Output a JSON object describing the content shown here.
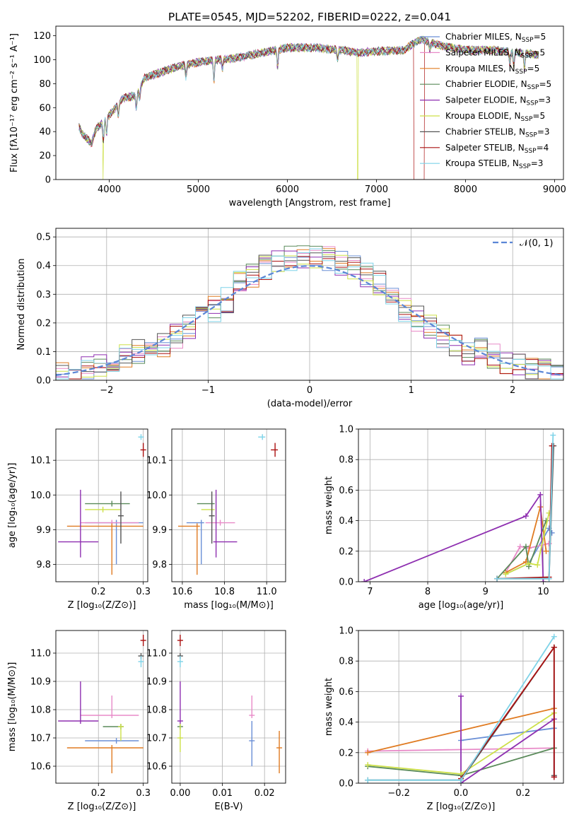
{
  "title": "PLATE=0545, MJD=52202, FIBERID=0222, z=0.041",
  "colors": {
    "Chabrier MILES": "#6a8fd6",
    "Salpeter MILES": "#e88ac8",
    "Kroupa MILES": "#e07b22",
    "Chabrier ELODIE": "#5a8a5a",
    "Salpeter ELODIE": "#8e2fb0",
    "Kroupa ELODIE": "#cde048",
    "Chabrier STELIB": "#555555",
    "Salpeter STELIB": "#aa1111",
    "Kroupa STELIB": "#7ed3e8",
    "normal": "#5b86d6"
  },
  "chart_data": [
    {
      "type": "line",
      "title": "PLATE=0545, MJD=52202, FIBERID=0222, z=0.041",
      "xlabel": "wavelength [Angstrom, rest frame]",
      "ylabel": "Flux [fλ10⁻¹⁷ erg cm⁻² s⁻¹ A⁻¹]",
      "xlim": [
        3400,
        9100
      ],
      "ylim": [
        0,
        128
      ],
      "xticks": [
        4000,
        5000,
        6000,
        7000,
        8000,
        9000
      ],
      "yticks": [
        0,
        20,
        40,
        60,
        80,
        100,
        120
      ],
      "legend": "right",
      "legend_entries": [
        {
          "model": "Chabrier MILES",
          "n": "5"
        },
        {
          "model": "Salpeter MILES",
          "n": "5"
        },
        {
          "model": "Kroupa MILES",
          "n": "5"
        },
        {
          "model": "Chabrier ELODIE",
          "n": "5"
        },
        {
          "model": "Salpeter ELODIE",
          "n": "3"
        },
        {
          "model": "Kroupa ELODIE",
          "n": "5"
        },
        {
          "model": "Chabrier STELIB",
          "n": "3"
        },
        {
          "model": "Salpeter STELIB",
          "n": "4"
        },
        {
          "model": "Kroupa STELIB",
          "n": "3"
        }
      ],
      "continuum": [
        [
          3650,
          45
        ],
        [
          3700,
          38
        ],
        [
          3800,
          30
        ],
        [
          3850,
          42
        ],
        [
          3950,
          50
        ],
        [
          4050,
          58
        ],
        [
          4150,
          68
        ],
        [
          4300,
          70
        ],
        [
          4400,
          85
        ],
        [
          4600,
          90
        ],
        [
          4800,
          95
        ],
        [
          5000,
          98
        ],
        [
          5200,
          100
        ],
        [
          5400,
          101
        ],
        [
          5600,
          104
        ],
        [
          5800,
          107
        ],
        [
          6000,
          110
        ],
        [
          6300,
          110
        ],
        [
          6600,
          108
        ],
        [
          6800,
          106
        ],
        [
          7000,
          107
        ],
        [
          7300,
          108
        ],
        [
          7500,
          117
        ],
        [
          7700,
          112
        ],
        [
          8000,
          108
        ],
        [
          8300,
          108
        ],
        [
          8600,
          106
        ],
        [
          8820,
          104
        ]
      ],
      "dropouts": [
        {
          "model": "Kroupa ELODIE",
          "x": 3930
        },
        {
          "model": "Kroupa ELODIE",
          "x": 6790
        },
        {
          "model": "Salpeter STELIB",
          "x": 7420
        }
      ]
    },
    {
      "type": "histogram",
      "xlabel": "(data-model)/error",
      "ylabel": "Normed distribution",
      "xlim": [
        -2.5,
        2.5
      ],
      "ylim": [
        0,
        0.53
      ],
      "xticks": [
        -2,
        -1,
        0,
        1,
        2
      ],
      "yticks": [
        0.0,
        0.1,
        0.2,
        0.3,
        0.4,
        0.5
      ],
      "legend": "top-right",
      "legend_label": "𝒩(0, 1)",
      "bins": 40,
      "normal_curve": {
        "mean": 0,
        "sigma": 1
      }
    },
    {
      "type": "errorbar",
      "xlabel": "Z [log₁₀(Z/Z⊙)]",
      "ylabel": "age  [log₁₀(age/yr)]",
      "xlim": [
        0.105,
        0.31
      ],
      "ylim": [
        9.75,
        10.19
      ],
      "xticks": [
        0.2,
        0.3
      ],
      "yticks": [
        9.8,
        9.9,
        10.0,
        10.1
      ],
      "points": [
        {
          "model": "Chabrier MILES",
          "x": 0.24,
          "xerr": [
            0.07,
            0.06
          ],
          "y": 9.92,
          "yerr": [
            0.12,
            0.0
          ]
        },
        {
          "model": "Salpeter MILES",
          "x": 0.23,
          "xerr": [
            0.07,
            0.06
          ],
          "y": 9.92,
          "yerr": [
            0.0,
            0.0
          ]
        },
        {
          "model": "Kroupa MILES",
          "x": 0.23,
          "xerr": [
            0.1,
            0.07
          ],
          "y": 9.91,
          "yerr": [
            0.14,
            0.0
          ]
        },
        {
          "model": "Chabrier ELODIE",
          "x": 0.23,
          "xerr": [
            0.06,
            0.04
          ],
          "y": 9.975,
          "yerr": [
            0.0,
            0.0
          ]
        },
        {
          "model": "Salpeter ELODIE",
          "x": 0.16,
          "xerr": [
            0.05,
            0.04
          ],
          "y": 9.865,
          "yerr": [
            0.045,
            0.15
          ]
        },
        {
          "model": "Kroupa ELODIE",
          "x": 0.21,
          "xerr": [
            0.04,
            0.04
          ],
          "y": 9.958,
          "yerr": [
            0.0,
            0.0
          ]
        },
        {
          "model": "Chabrier STELIB",
          "x": 0.25,
          "xerr": [
            0.0,
            0.0
          ],
          "y": 9.94,
          "yerr": [
            0.08,
            0.07
          ]
        },
        {
          "model": "Salpeter STELIB",
          "x": 0.3,
          "xerr": [
            0.005,
            0.005
          ],
          "y": 10.13,
          "yerr": [
            0.02,
            0.02
          ]
        },
        {
          "model": "Kroupa STELIB",
          "x": 0.295,
          "xerr": [
            0.005,
            0.005
          ],
          "y": 10.167,
          "yerr": [
            0.0,
            0.0
          ]
        }
      ]
    },
    {
      "type": "errorbar",
      "xlabel": "mass [log₁₀(M/M⊙)]",
      "ylabel": "",
      "xlim": [
        10.55,
        11.09
      ],
      "ylim": [
        9.75,
        10.19
      ],
      "xticks": [
        10.6,
        10.8,
        11.0
      ],
      "yticks": [
        9.8,
        9.9,
        10.0,
        10.1
      ],
      "points": [
        {
          "model": "Chabrier MILES",
          "x": 10.69,
          "xerr": [
            0.07,
            0.0
          ],
          "y": 9.92,
          "yerr": [
            0.12,
            0.0
          ]
        },
        {
          "model": "Salpeter MILES",
          "x": 10.78,
          "xerr": [
            0.07,
            0.07
          ],
          "y": 9.92,
          "yerr": [
            0.0,
            0.0
          ]
        },
        {
          "model": "Kroupa MILES",
          "x": 10.67,
          "xerr": [
            0.09,
            0.0
          ],
          "y": 9.91,
          "yerr": [
            0.14,
            0.0
          ]
        },
        {
          "model": "Chabrier ELODIE",
          "x": 10.74,
          "xerr": [
            0.07,
            0.0
          ],
          "y": 9.975,
          "yerr": [
            0.0,
            0.0
          ]
        },
        {
          "model": "Salpeter ELODIE",
          "x": 10.76,
          "xerr": [
            0.0,
            0.1
          ],
          "y": 9.865,
          "yerr": [
            0.045,
            0.15
          ]
        },
        {
          "model": "Kroupa ELODIE",
          "x": 10.74,
          "xerr": [
            0.05,
            0.0
          ],
          "y": 9.958,
          "yerr": [
            0.0,
            0.0
          ]
        },
        {
          "model": "Chabrier STELIB",
          "x": 10.74,
          "xerr": [
            0.0,
            0.0
          ],
          "y": 9.94,
          "yerr": [
            0.08,
            0.07
          ]
        },
        {
          "model": "Salpeter STELIB",
          "x": 11.04,
          "xerr": [
            0.02,
            0.0
          ],
          "y": 10.13,
          "yerr": [
            0.02,
            0.02
          ]
        },
        {
          "model": "Kroupa STELIB",
          "x": 10.98,
          "xerr": [
            0.02,
            0.0
          ],
          "y": 10.167,
          "yerr": [
            0.0,
            0.0
          ]
        }
      ]
    },
    {
      "type": "line",
      "xlabel": "age  [log₁₀(age/yr)]",
      "ylabel": "mass weight",
      "xlim": [
        6.8,
        10.35
      ],
      "ylim": [
        0,
        1.0
      ],
      "xticks": [
        7,
        8,
        9,
        10
      ],
      "yticks": [
        0.0,
        0.2,
        0.4,
        0.6,
        0.8,
        1.0
      ],
      "series": [
        {
          "model": "Chabrier MILES",
          "x": [
            9.35,
            9.75,
            10.1,
            10.15
          ],
          "y": [
            0.05,
            0.12,
            0.35,
            0.32
          ]
        },
        {
          "model": "Salpeter MILES",
          "x": [
            9.35,
            9.6,
            9.75,
            10.1
          ],
          "y": [
            0.06,
            0.23,
            0.22,
            0.25
          ]
        },
        {
          "model": "Kroupa MILES",
          "x": [
            9.35,
            9.7,
            9.95,
            10.05
          ],
          "y": [
            0.06,
            0.13,
            0.49,
            0.2
          ]
        },
        {
          "model": "Chabrier ELODIE",
          "x": [
            9.2,
            9.7,
            9.75,
            10.05
          ],
          "y": [
            0.02,
            0.23,
            0.1,
            0.4
          ]
        },
        {
          "model": "Salpeter ELODIE",
          "x": [
            6.9,
            9.7,
            9.95,
            10.0
          ],
          "y": [
            0.0,
            0.43,
            0.57,
            0.0
          ]
        },
        {
          "model": "Kroupa ELODIE",
          "x": [
            9.35,
            9.75,
            9.9,
            10.1
          ],
          "y": [
            0.05,
            0.12,
            0.11,
            0.45
          ]
        },
        {
          "model": "Chabrier STELIB",
          "x": [
            9.2,
            10.1,
            10.18
          ],
          "y": [
            0.02,
            0.02,
            0.89
          ]
        },
        {
          "model": "Salpeter STELIB",
          "x": [
            9.2,
            10.1,
            10.15
          ],
          "y": [
            0.02,
            0.03,
            0.89
          ]
        },
        {
          "model": "Kroupa STELIB",
          "x": [
            9.2,
            10.1,
            10.17
          ],
          "y": [
            0.02,
            0.02,
            0.96
          ]
        }
      ]
    },
    {
      "type": "errorbar",
      "xlabel": "Z [log₁₀(Z/Z⊙)]",
      "ylabel": "mass [log₁₀(M/M⊙)]",
      "xlim": [
        0.105,
        0.31
      ],
      "ylim": [
        10.54,
        11.08
      ],
      "xticks": [
        0.2,
        0.3
      ],
      "yticks": [
        10.6,
        10.7,
        10.8,
        10.9,
        11.0
      ],
      "points": [
        {
          "model": "Chabrier MILES",
          "x": 0.24,
          "xerr": [
            0.07,
            0.05
          ],
          "y": 10.69,
          "yerr": [
            0.0,
            0.0
          ]
        },
        {
          "model": "Salpeter MILES",
          "x": 0.23,
          "xerr": [
            0.07,
            0.06
          ],
          "y": 10.78,
          "yerr": [
            0.0,
            0.07
          ]
        },
        {
          "model": "Kroupa MILES",
          "x": 0.23,
          "xerr": [
            0.1,
            0.07
          ],
          "y": 10.665,
          "yerr": [
            0.09,
            0.0
          ]
        },
        {
          "model": "Chabrier ELODIE",
          "x": 0.25,
          "xerr": [
            0.04,
            0.0
          ],
          "y": 10.74,
          "yerr": [
            0.0,
            0.0
          ]
        },
        {
          "model": "Salpeter ELODIE",
          "x": 0.16,
          "xerr": [
            0.05,
            0.04
          ],
          "y": 10.76,
          "yerr": [
            0.0,
            0.14
          ]
        },
        {
          "model": "Kroupa ELODIE",
          "x": 0.25,
          "xerr": [
            0.0,
            0.0
          ],
          "y": 10.74,
          "yerr": [
            0.05,
            0.0
          ]
        },
        {
          "model": "Chabrier STELIB",
          "x": 0.295,
          "xerr": [
            0.0,
            0.0
          ],
          "y": 10.99,
          "yerr": [
            0.0,
            0.0
          ]
        },
        {
          "model": "Salpeter STELIB",
          "x": 0.3,
          "xerr": [
            0.006,
            0.0
          ],
          "y": 11.045,
          "yerr": [
            0.02,
            0.02
          ]
        },
        {
          "model": "Kroupa STELIB",
          "x": 0.295,
          "xerr": [
            0.0,
            0.0
          ],
          "y": 10.97,
          "yerr": [
            0.02,
            0.02
          ]
        }
      ]
    },
    {
      "type": "errorbar",
      "xlabel": "E(B-V)",
      "ylabel": "",
      "xlim": [
        -0.002,
        0.025
      ],
      "ylim": [
        10.54,
        11.08
      ],
      "xticks": [
        0.0,
        0.01,
        0.02
      ],
      "yticks": [
        10.6,
        10.7,
        10.8,
        10.9,
        11.0
      ],
      "points": [
        {
          "model": "Chabrier MILES",
          "x": 0.017,
          "xerr": [
            0.0,
            0.0
          ],
          "y": 10.69,
          "yerr": [
            0.09,
            0.07
          ]
        },
        {
          "model": "Salpeter MILES",
          "x": 0.017,
          "xerr": [
            0.0,
            0.0
          ],
          "y": 10.78,
          "yerr": [
            0.0,
            0.07
          ]
        },
        {
          "model": "Kroupa MILES",
          "x": 0.0235,
          "xerr": [
            0.0,
            0.0
          ],
          "y": 10.665,
          "yerr": [
            0.09,
            0.06
          ]
        },
        {
          "model": "Chabrier ELODIE",
          "x": 0.0,
          "xerr": [
            0.0,
            0.0
          ],
          "y": 10.74,
          "yerr": [
            0.0,
            0.0
          ]
        },
        {
          "model": "Salpeter ELODIE",
          "x": 0.0,
          "xerr": [
            0.0,
            0.0
          ],
          "y": 10.76,
          "yerr": [
            0.0,
            0.14
          ]
        },
        {
          "model": "Kroupa ELODIE",
          "x": 0.0,
          "xerr": [
            0.0,
            0.0
          ],
          "y": 10.7,
          "yerr": [
            0.05,
            0.05
          ]
        },
        {
          "model": "Chabrier STELIB",
          "x": 0.0,
          "xerr": [
            0.0,
            0.0
          ],
          "y": 10.99,
          "yerr": [
            0.0,
            0.0
          ]
        },
        {
          "model": "Salpeter STELIB",
          "x": 0.0,
          "xerr": [
            0.0,
            0.0
          ],
          "y": 11.045,
          "yerr": [
            0.02,
            0.02
          ]
        },
        {
          "model": "Kroupa STELIB",
          "x": 0.0,
          "xerr": [
            0.0,
            0.0
          ],
          "y": 10.97,
          "yerr": [
            0.02,
            0.02
          ]
        }
      ]
    },
    {
      "type": "line",
      "xlabel": "Z [log₁₀(Z/Z⊙)]",
      "ylabel": "mass weight",
      "xlim": [
        -0.33,
        0.33
      ],
      "ylim": [
        0,
        1.0
      ],
      "xticks": [
        -0.2,
        0.0,
        0.2
      ],
      "yticks": [
        0.0,
        0.2,
        0.4,
        0.6,
        0.8,
        1.0
      ],
      "series": [
        {
          "model": "Chabrier MILES",
          "x": [
            0.0,
            0.3
          ],
          "y": [
            0.28,
            0.36
          ]
        },
        {
          "model": "Salpeter MILES",
          "x": [
            -0.3,
            0.3
          ],
          "y": [
            0.21,
            0.23
          ]
        },
        {
          "model": "Kroupa MILES",
          "x": [
            -0.3,
            0.3
          ],
          "y": [
            0.2,
            0.49
          ]
        },
        {
          "model": "Chabrier ELODIE",
          "x": [
            -0.3,
            0.0,
            0.3
          ],
          "y": [
            0.11,
            0.05,
            0.23
          ]
        },
        {
          "model": "Salpeter ELODIE",
          "x": [
            0.0,
            0.0,
            0.3,
            0.3
          ],
          "y": [
            0.57,
            0.0,
            0.42,
            0.04
          ]
        },
        {
          "model": "Kroupa ELODIE",
          "x": [
            -0.3,
            0.0,
            0.3
          ],
          "y": [
            0.12,
            0.06,
            0.46
          ]
        },
        {
          "model": "Chabrier STELIB",
          "x": [
            -0.3,
            0.0,
            0.3,
            0.3
          ],
          "y": [
            0.02,
            0.02,
            0.89,
            0.05
          ]
        },
        {
          "model": "Salpeter STELIB",
          "x": [
            0.0,
            0.3,
            0.3
          ],
          "y": [
            0.03,
            0.89,
            0.04
          ]
        },
        {
          "model": "Kroupa STELIB",
          "x": [
            -0.3,
            0.0,
            0.3
          ],
          "y": [
            0.02,
            0.02,
            0.96
          ]
        }
      ]
    }
  ]
}
